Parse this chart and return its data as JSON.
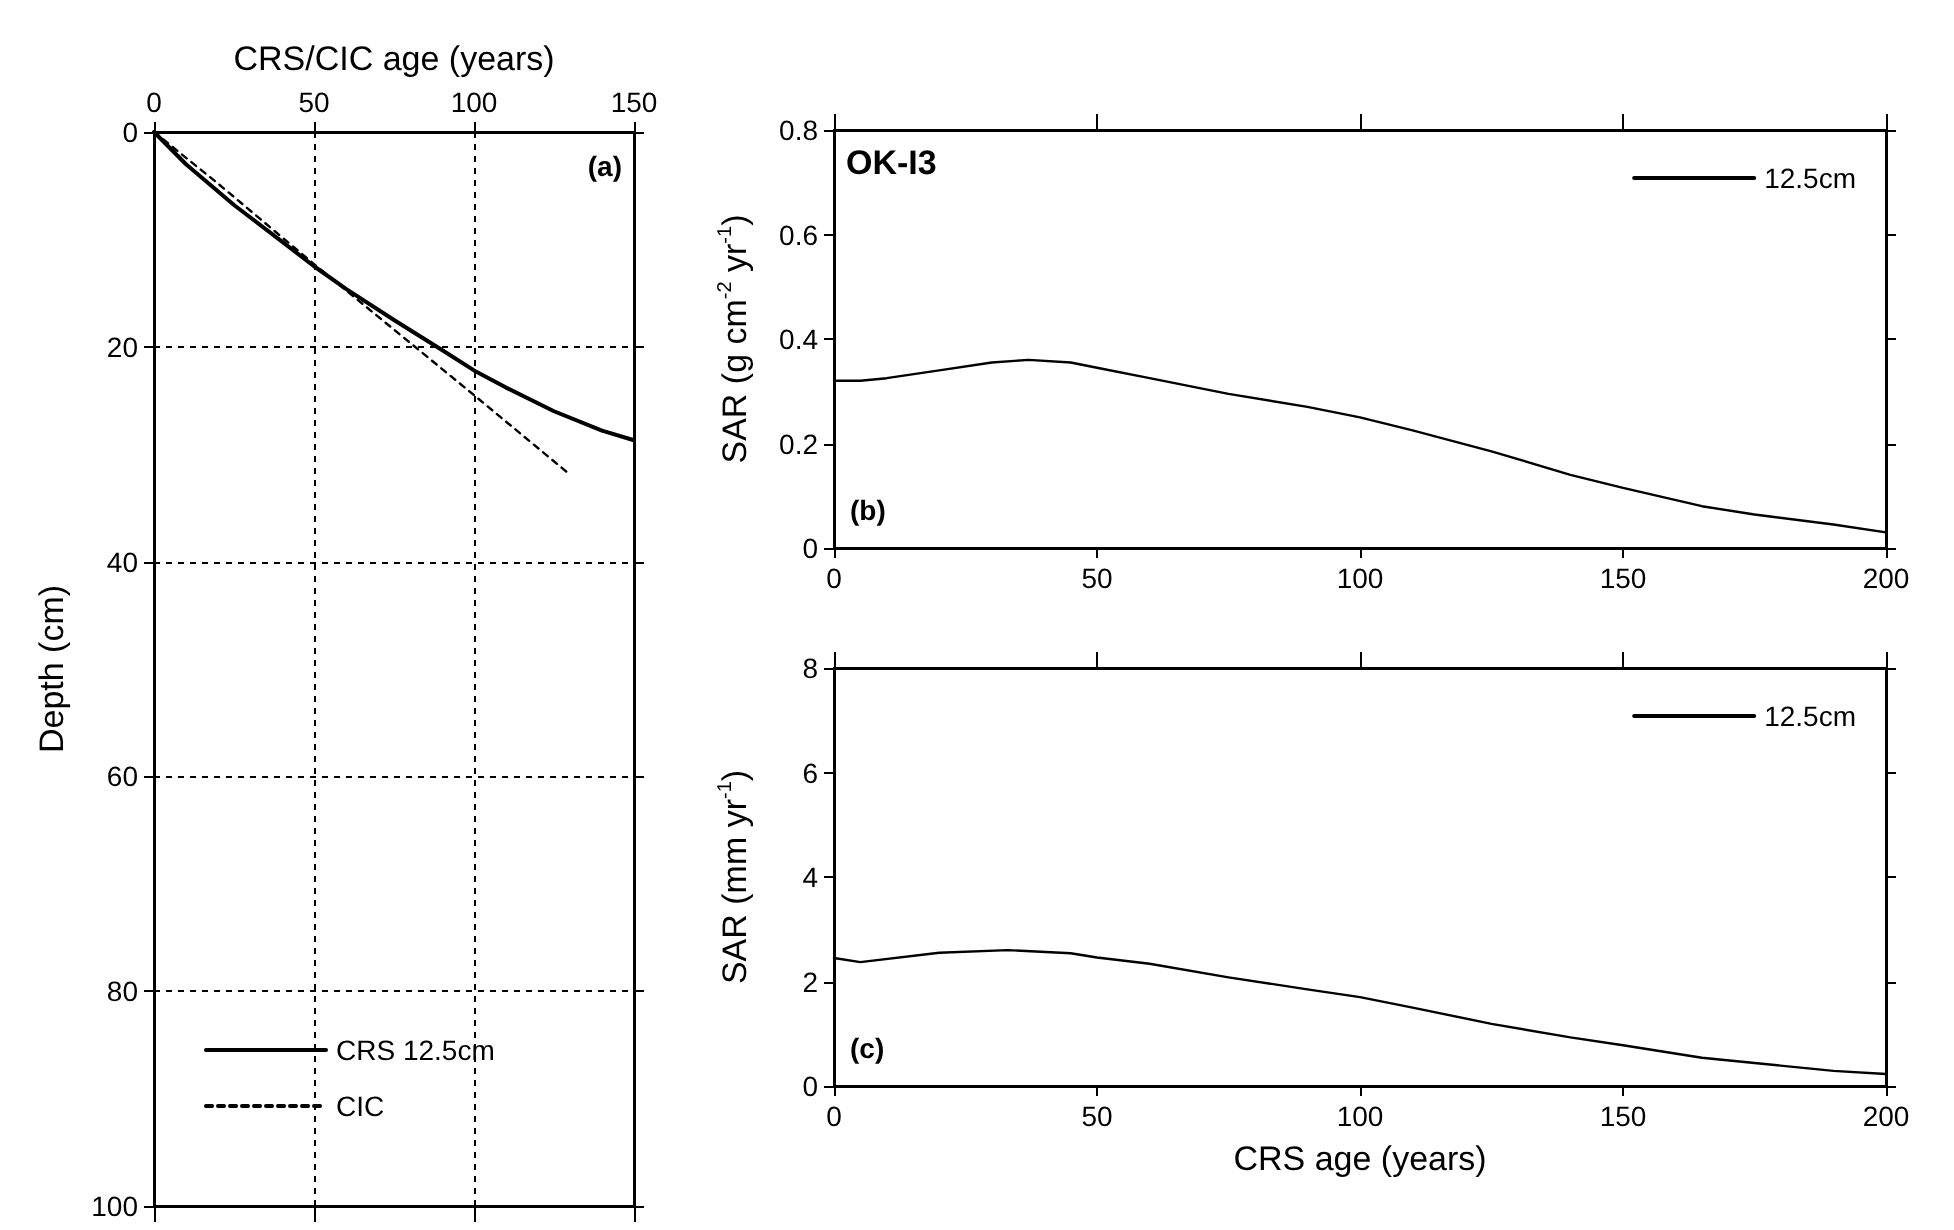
{
  "chart_data": [
    {
      "type": "line",
      "xlabel": "CRS/CIC age (years)",
      "ylabel": "Depth (cm)",
      "xlim": [
        0,
        150
      ],
      "xticks": [
        0,
        50,
        100,
        150
      ],
      "ylim": [
        100,
        0
      ],
      "yticks": [
        0,
        20,
        40,
        60,
        80,
        100
      ],
      "grid": true,
      "legend": "bottom left",
      "annotations": [
        "(a)"
      ],
      "series": [
        {
          "name": "CRS 12.5cm",
          "color": "#000000",
          "line_style": "solid",
          "x": [
            0,
            10,
            25,
            40,
            50,
            60,
            75,
            90,
            100,
            110,
            125,
            140,
            150
          ],
          "values": [
            0,
            3.0,
            6.8,
            10.2,
            12.5,
            14.6,
            17.5,
            20.3,
            22.2,
            23.8,
            26.0,
            27.8,
            28.7
          ]
        },
        {
          "name": "CIC",
          "color": "#000000",
          "line_style": "dashed",
          "x": [
            0,
            20,
            50,
            75,
            100,
            115,
            130
          ],
          "values": [
            0,
            4.8,
            12.3,
            18.4,
            24.5,
            28.2,
            31.9
          ]
        }
      ]
    },
    {
      "type": "line",
      "ylabel": "SAR (g cm$^{-2}$ yr$^{-1}$)",
      "xlim": [
        0,
        200
      ],
      "xticks": [
        0,
        50,
        100,
        150,
        200
      ],
      "ylim": [
        0,
        0.8
      ],
      "yticks": [
        0,
        0.2,
        0.4,
        0.6,
        0.8
      ],
      "grid": false,
      "legend": "top right",
      "annotations": [
        "OK-I3",
        "(b)"
      ],
      "series": [
        {
          "name": "12.5cm",
          "color": "#000000",
          "line_style": "solid",
          "x": [
            0,
            5,
            10,
            20,
            30,
            37,
            45,
            50,
            60,
            75,
            90,
            100,
            110,
            125,
            140,
            150,
            165,
            175,
            190,
            200
          ],
          "values": [
            0.32,
            0.32,
            0.325,
            0.34,
            0.355,
            0.36,
            0.355,
            0.345,
            0.325,
            0.295,
            0.27,
            0.25,
            0.225,
            0.185,
            0.14,
            0.115,
            0.08,
            0.064,
            0.045,
            0.03
          ]
        }
      ]
    },
    {
      "type": "line",
      "xlabel": "CRS age (years)",
      "ylabel": "SAR (mm yr$^{-1}$)",
      "xlim": [
        0,
        200
      ],
      "xticks": [
        0,
        50,
        100,
        150,
        200
      ],
      "ylim": [
        0,
        8
      ],
      "yticks": [
        0,
        2,
        4,
        6,
        8
      ],
      "grid": false,
      "legend": "top right",
      "annotations": [
        "(c)"
      ],
      "series": [
        {
          "name": "12.5cm",
          "color": "#000000",
          "line_style": "solid",
          "x": [
            0,
            5,
            20,
            33,
            45,
            50,
            60,
            75,
            90,
            100,
            110,
            125,
            140,
            150,
            165,
            175,
            190,
            200
          ],
          "values": [
            2.45,
            2.37,
            2.55,
            2.6,
            2.54,
            2.46,
            2.34,
            2.08,
            1.85,
            1.7,
            1.5,
            1.19,
            0.93,
            0.78,
            0.54,
            0.44,
            0.29,
            0.23
          ]
        }
      ]
    }
  ]
}
